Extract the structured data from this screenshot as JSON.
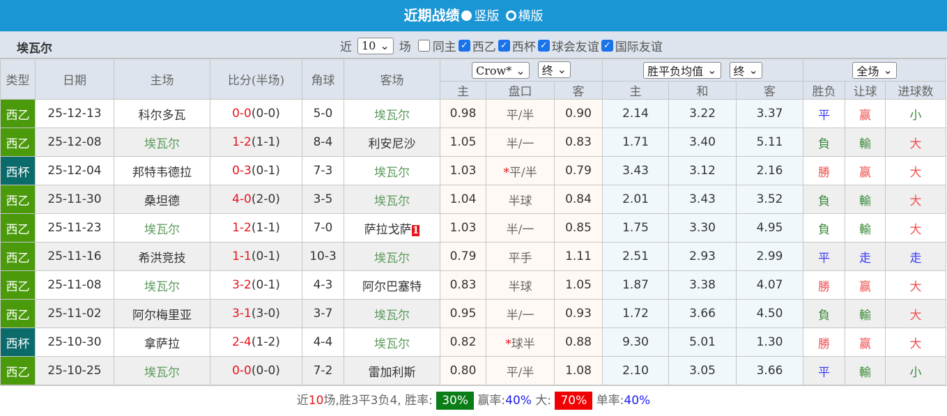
{
  "header": {
    "title": "近期战绩",
    "options": [
      {
        "label": "竖版",
        "selected": true
      },
      {
        "label": "横版",
        "selected": false
      }
    ]
  },
  "filter": {
    "team": "埃瓦尔",
    "near_label": "近",
    "count": "10",
    "games_label": "场",
    "checkboxes": [
      {
        "label": "同主",
        "checked": false
      },
      {
        "label": "西乙",
        "checked": true
      },
      {
        "label": "西杯",
        "checked": true
      },
      {
        "label": "球会友谊",
        "checked": true
      },
      {
        "label": "国际友谊",
        "checked": true
      }
    ]
  },
  "columns": {
    "type": "类型",
    "date": "日期",
    "home": "主场",
    "score": "比分(半场)",
    "corner": "角球",
    "away": "客场",
    "company": "Crow*",
    "state1": "终",
    "avg": "胜平负均值",
    "state2": "终",
    "period": "全场",
    "sub": [
      "主",
      "盘口",
      "客",
      "主",
      "和",
      "客",
      "胜负",
      "让球",
      "进球数"
    ]
  },
  "colors": {
    "西乙": "#4a9a0c",
    "西杯": "#0b6a6a"
  },
  "rows": [
    {
      "type": "西乙",
      "date": "25-12-13",
      "home": "科尔多瓦",
      "score": "0-0",
      "half": "(0-0)",
      "corner": "5-0",
      "away": "埃瓦尔",
      "badge": "",
      "o1": "0.98",
      "hc": "平/半",
      "star": "",
      "o2": "0.90",
      "w": "2.14",
      "d": "3.22",
      "l": "3.37",
      "r1": "平",
      "r2": "赢",
      "r3": "小",
      "ewHome": false
    },
    {
      "type": "西乙",
      "date": "25-12-08",
      "home": "埃瓦尔",
      "score": "1-2",
      "half": "(1-1)",
      "corner": "8-4",
      "away": "利安尼沙",
      "badge": "",
      "o1": "1.05",
      "hc": "半/一",
      "star": "",
      "o2": "0.83",
      "w": "1.71",
      "d": "3.40",
      "l": "5.11",
      "r1": "負",
      "r2": "輸",
      "r3": "大",
      "ewHome": true
    },
    {
      "type": "西杯",
      "date": "25-12-04",
      "home": "邦特韦德拉",
      "score": "0-3",
      "half": "(0-1)",
      "corner": "7-3",
      "away": "埃瓦尔",
      "badge": "",
      "o1": "1.03",
      "hc": "平/半",
      "star": "*",
      "o2": "0.79",
      "w": "3.43",
      "d": "3.12",
      "l": "2.16",
      "r1": "勝",
      "r2": "赢",
      "r3": "大",
      "ewHome": false
    },
    {
      "type": "西乙",
      "date": "25-11-30",
      "home": "桑坦德",
      "score": "4-0",
      "half": "(2-0)",
      "corner": "3-5",
      "away": "埃瓦尔",
      "badge": "",
      "o1": "1.04",
      "hc": "半球",
      "star": "",
      "o2": "0.84",
      "w": "2.01",
      "d": "3.43",
      "l": "3.52",
      "r1": "負",
      "r2": "輸",
      "r3": "大",
      "ewHome": false
    },
    {
      "type": "西乙",
      "date": "25-11-23",
      "home": "埃瓦尔",
      "score": "1-2",
      "half": "(1-1)",
      "corner": "7-0",
      "away": "萨拉戈萨",
      "badge": "1",
      "o1": "1.03",
      "hc": "半/一",
      "star": "",
      "o2": "0.85",
      "w": "1.75",
      "d": "3.30",
      "l": "4.95",
      "r1": "負",
      "r2": "輸",
      "r3": "大",
      "ewHome": true
    },
    {
      "type": "西乙",
      "date": "25-11-16",
      "home": "希洪竞技",
      "score": "1-1",
      "half": "(0-1)",
      "corner": "10-3",
      "away": "埃瓦尔",
      "badge": "",
      "o1": "0.79",
      "hc": "平手",
      "star": "",
      "o2": "1.11",
      "w": "2.51",
      "d": "2.93",
      "l": "2.99",
      "r1": "平",
      "r2": "走",
      "r3": "走",
      "ewHome": false
    },
    {
      "type": "西乙",
      "date": "25-11-08",
      "home": "埃瓦尔",
      "score": "3-2",
      "half": "(0-1)",
      "corner": "4-3",
      "away": "阿尔巴塞特",
      "badge": "",
      "o1": "0.83",
      "hc": "半球",
      "star": "",
      "o2": "1.05",
      "w": "1.87",
      "d": "3.38",
      "l": "4.07",
      "r1": "勝",
      "r2": "赢",
      "r3": "大",
      "ewHome": true
    },
    {
      "type": "西乙",
      "date": "25-11-02",
      "home": "阿尔梅里亚",
      "score": "3-1",
      "half": "(3-0)",
      "corner": "3-7",
      "away": "埃瓦尔",
      "badge": "",
      "o1": "0.95",
      "hc": "半/一",
      "star": "",
      "o2": "0.93",
      "w": "1.72",
      "d": "3.66",
      "l": "4.50",
      "r1": "負",
      "r2": "輸",
      "r3": "大",
      "ewHome": false
    },
    {
      "type": "西杯",
      "date": "25-10-30",
      "home": "拿萨拉",
      "score": "2-4",
      "half": "(1-2)",
      "corner": "4-4",
      "away": "埃瓦尔",
      "badge": "",
      "o1": "0.82",
      "hc": "球半",
      "star": "*",
      "o2": "0.88",
      "w": "9.30",
      "d": "5.01",
      "l": "1.30",
      "r1": "勝",
      "r2": "赢",
      "r3": "大",
      "ewHome": false
    },
    {
      "type": "西乙",
      "date": "25-10-25",
      "home": "埃瓦尔",
      "score": "0-0",
      "half": "(0-0)",
      "corner": "7-2",
      "away": "雷加利斯",
      "badge": "",
      "o1": "0.80",
      "hc": "平/半",
      "star": "",
      "o2": "1.08",
      "w": "2.10",
      "d": "3.05",
      "l": "3.66",
      "r1": "平",
      "r2": "輸",
      "r3": "小",
      "ewHome": true
    }
  ],
  "summary": {
    "p1": "近",
    "n": "10",
    "p2": "场,胜3平3负4, 胜率:",
    "win_rate": "30%",
    "l_cover": "赢率:",
    "cover_rate": "40%",
    "l_big": " 大:",
    "big_rate": "70%",
    "l_odd": "单率:",
    "odd_rate": "40%",
    "win_color": "#0a7d16",
    "big_color": "#f00000"
  }
}
